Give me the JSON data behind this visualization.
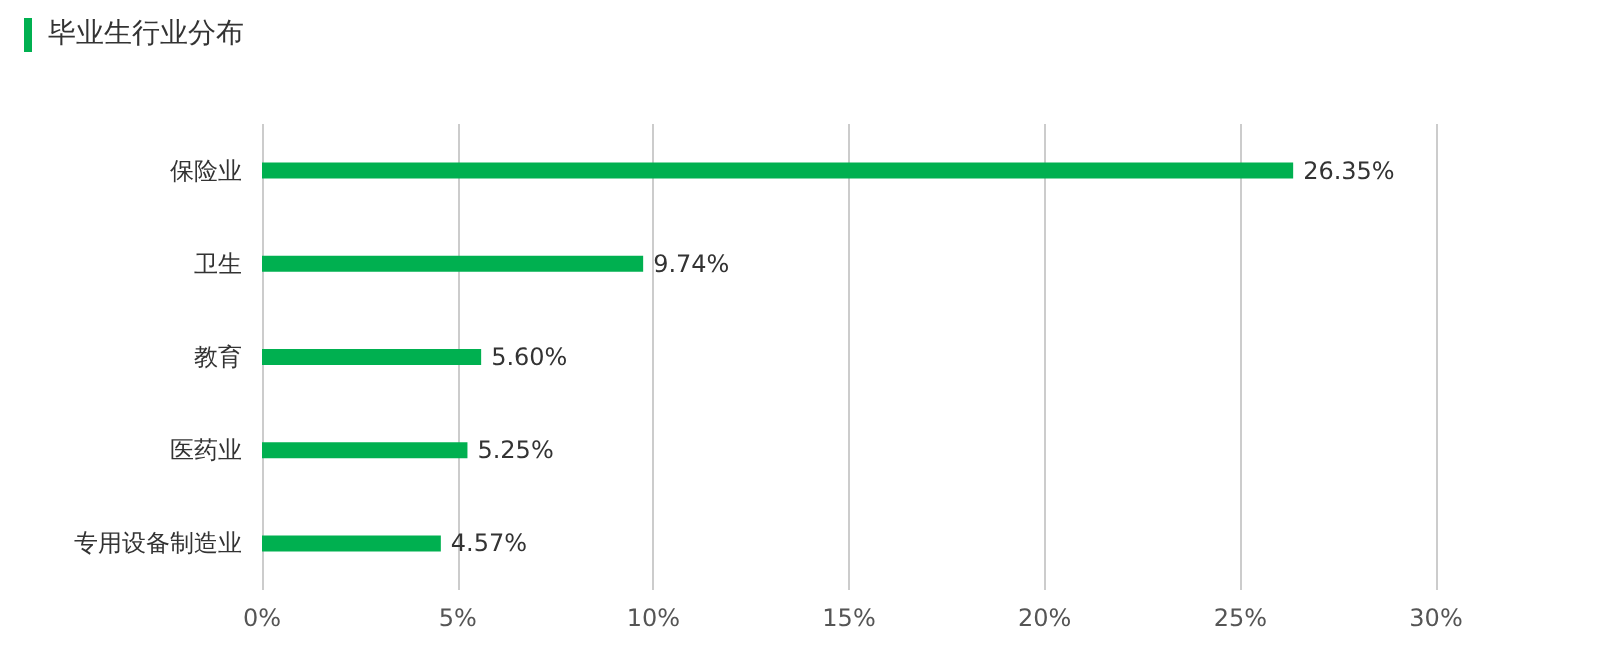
{
  "chart_data": {
    "type": "bar",
    "orientation": "horizontal",
    "title": "毕业生行业分布",
    "categories": [
      "保险业",
      "卫生",
      "教育",
      "医药业",
      "专用设备制造业"
    ],
    "values": [
      26.35,
      9.74,
      5.6,
      5.25,
      4.57
    ],
    "value_labels": [
      "26.35%",
      "9.74%",
      "5.60%",
      "5.25%",
      "4.57%"
    ],
    "color": "#00b050",
    "xlim": [
      0,
      30
    ],
    "xticks": [
      {
        "value": 0,
        "label": "0%"
      },
      {
        "value": 5,
        "label": "5%"
      },
      {
        "value": 10,
        "label": "10%"
      },
      {
        "value": 15,
        "label": "15%"
      },
      {
        "value": 20,
        "label": "20%"
      },
      {
        "value": 25,
        "label": "25%"
      },
      {
        "value": 30,
        "label": "30%"
      }
    ],
    "grid": "x"
  }
}
